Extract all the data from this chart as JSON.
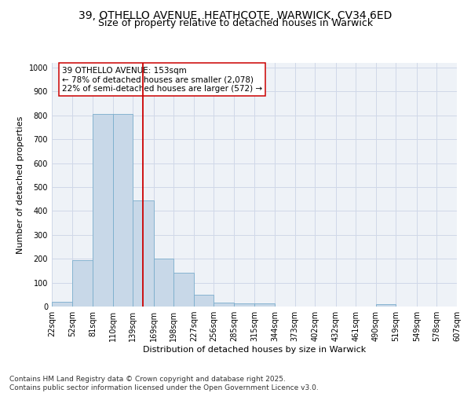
{
  "title_line1": "39, OTHELLO AVENUE, HEATHCOTE, WARWICK, CV34 6ED",
  "title_line2": "Size of property relative to detached houses in Warwick",
  "xlabel": "Distribution of detached houses by size in Warwick",
  "ylabel": "Number of detached properties",
  "bar_color": "#c8d8e8",
  "bar_edge_color": "#7aadcc",
  "vline_color": "#cc0000",
  "vline_x": 153,
  "annotation_text": "39 OTHELLO AVENUE: 153sqm\n← 78% of detached houses are smaller (2,078)\n22% of semi-detached houses are larger (572) →",
  "annotation_box_color": "#ffffff",
  "annotation_box_edge": "#cc0000",
  "footnote": "Contains HM Land Registry data © Crown copyright and database right 2025.\nContains public sector information licensed under the Open Government Licence v3.0.",
  "bin_edges": [
    22,
    52,
    81,
    110,
    139,
    169,
    198,
    227,
    256,
    285,
    315,
    344,
    373,
    402,
    432,
    461,
    490,
    519,
    549,
    578,
    607
  ],
  "bar_heights": [
    20,
    195,
    805,
    805,
    445,
    200,
    140,
    50,
    18,
    13,
    13,
    0,
    0,
    0,
    0,
    0,
    10,
    0,
    0,
    0
  ],
  "ylim": [
    0,
    1020
  ],
  "yticks": [
    0,
    100,
    200,
    300,
    400,
    500,
    600,
    700,
    800,
    900,
    1000
  ],
  "background_color": "#eef2f7",
  "grid_color": "#d0d8e8",
  "title_fontsize": 10,
  "subtitle_fontsize": 9,
  "axis_label_fontsize": 8,
  "tick_fontsize": 7,
  "annotation_fontsize": 7.5,
  "footnote_fontsize": 6.5
}
